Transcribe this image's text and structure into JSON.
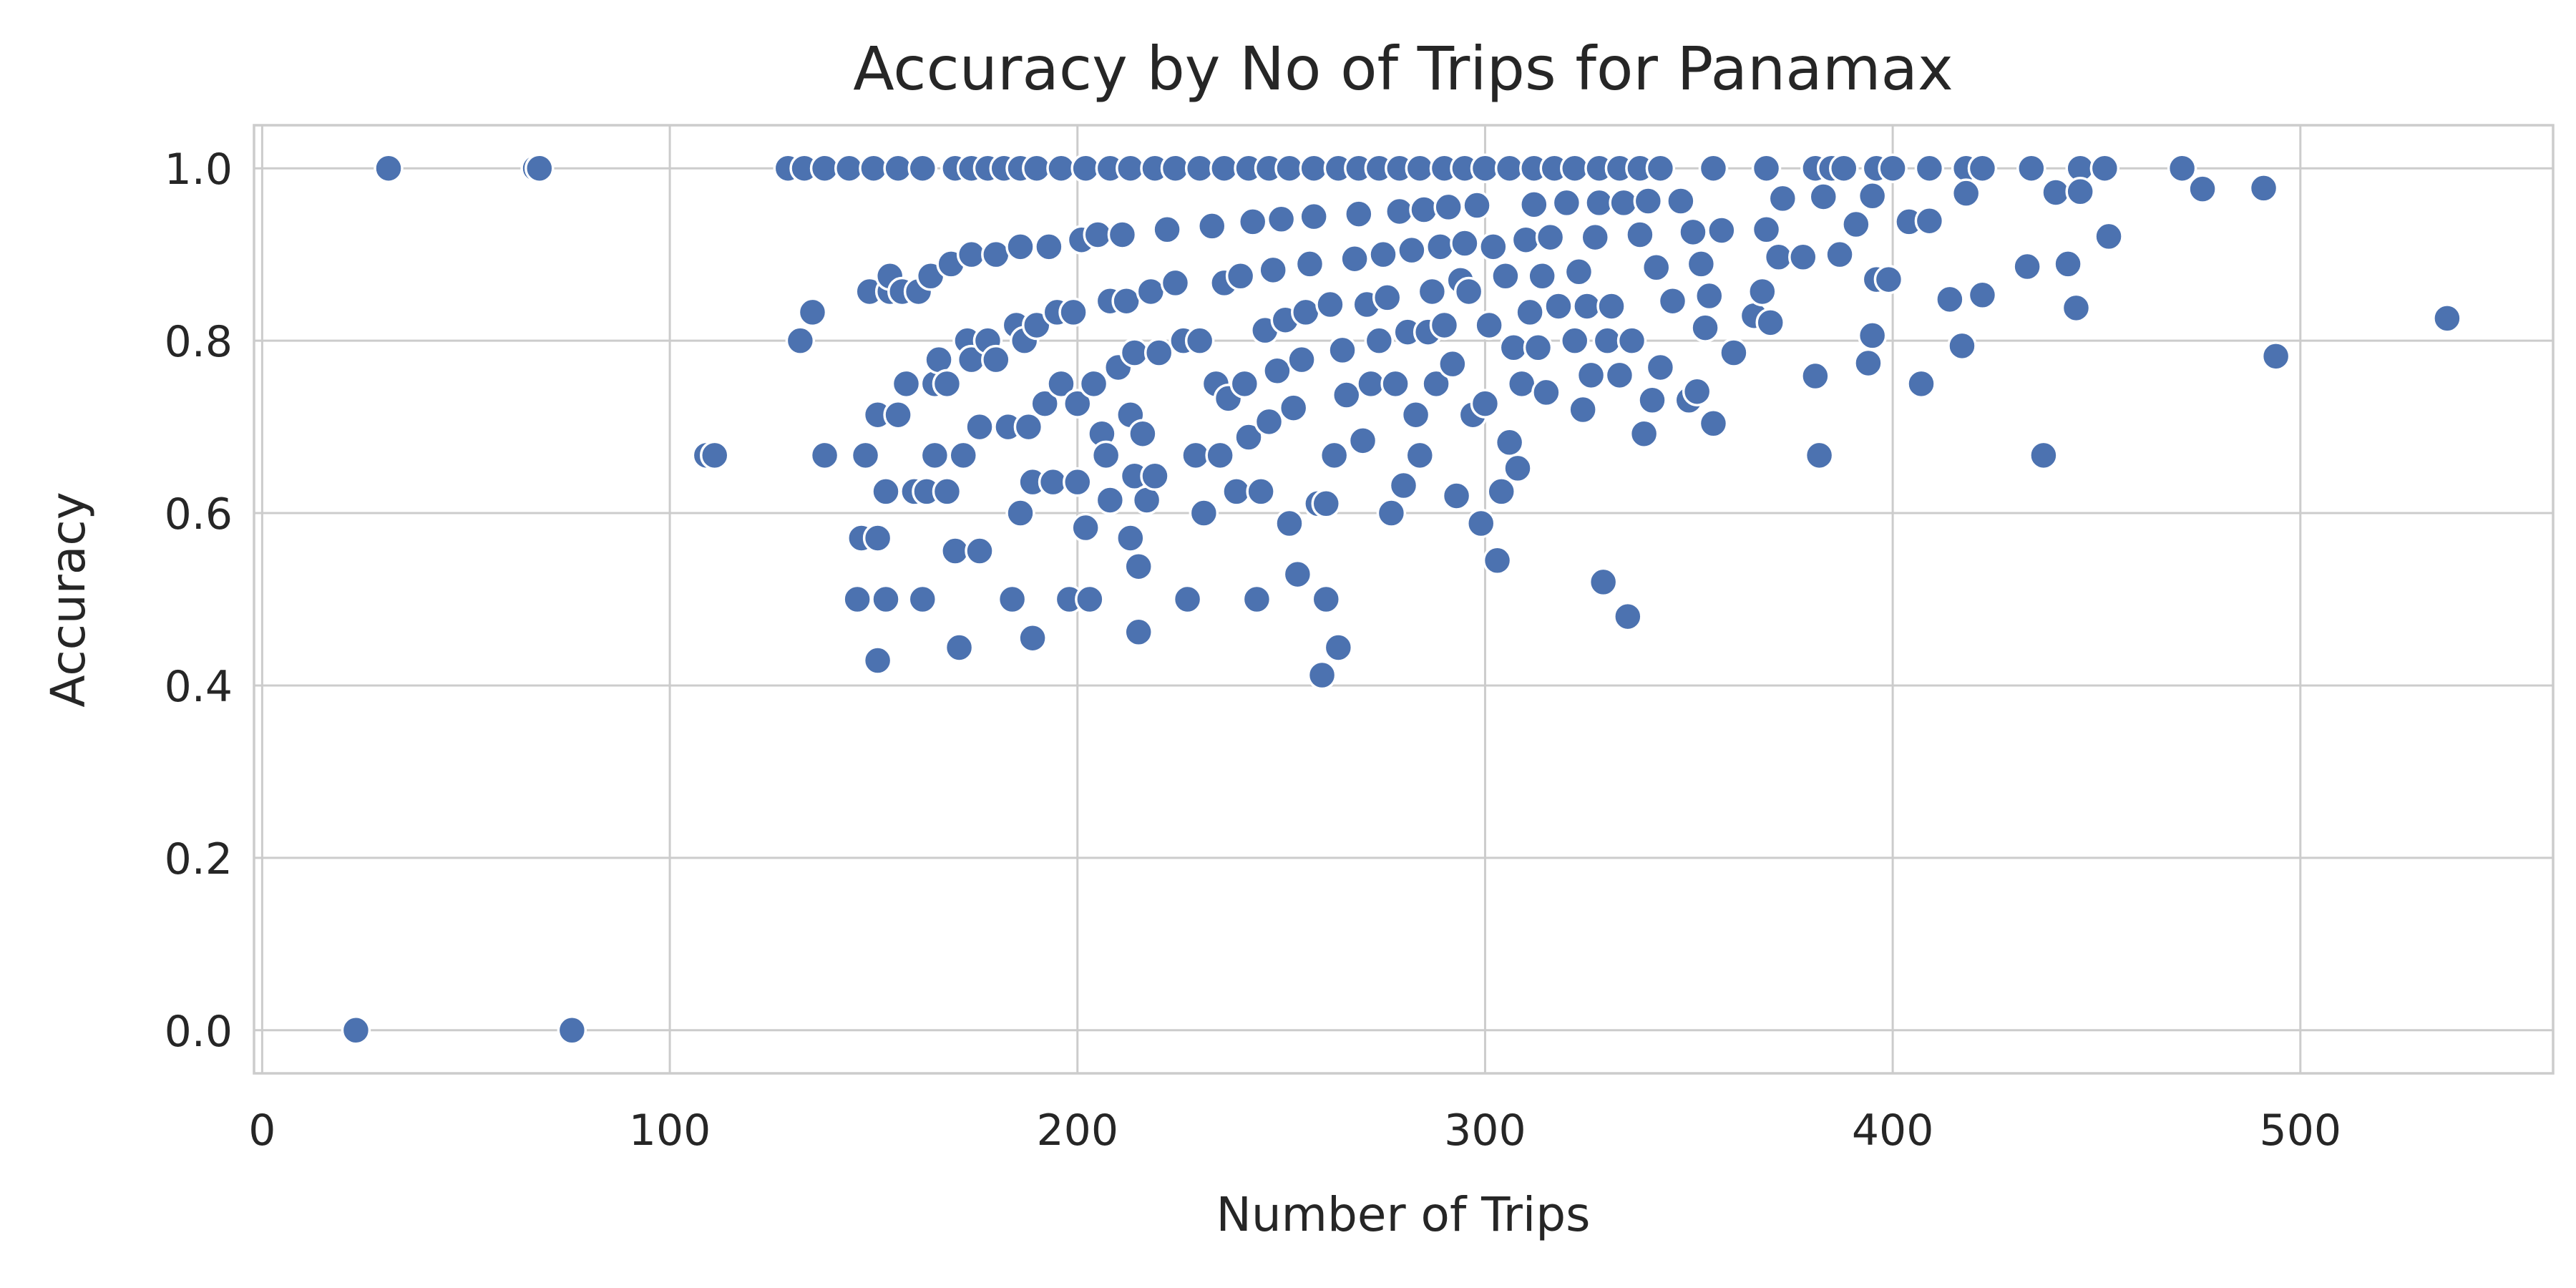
{
  "chart_data": {
    "type": "scatter",
    "title": "Accuracy by No of Trips for Panamax",
    "xlabel": "Number of Trips",
    "ylabel": "Accuracy",
    "xlim": [
      -2,
      562
    ],
    "ylim": [
      -0.05,
      1.05
    ],
    "xticks": [
      0,
      100,
      200,
      300,
      400,
      500
    ],
    "yticks": [
      0.0,
      0.2,
      0.4,
      0.6,
      0.8,
      1.0
    ],
    "xtick_labels": [
      "0",
      "100",
      "200",
      "300",
      "400",
      "500"
    ],
    "ytick_labels": [
      "0.0",
      "0.2",
      "0.4",
      "0.6",
      "0.8",
      "1.0"
    ],
    "grid": true,
    "legend": "none",
    "colors": {
      "point": "#4c72b0",
      "point_edge": "#ffffff",
      "grid": "#cccccc",
      "text": "#262626"
    },
    "points": [
      [
        23,
        0.0
      ],
      [
        76,
        0.0
      ],
      [
        31,
        1.0
      ],
      [
        67,
        1.0
      ],
      [
        68,
        1.0
      ],
      [
        109,
        0.667
      ],
      [
        111,
        0.667
      ],
      [
        129,
        1.0
      ],
      [
        133,
        1.0
      ],
      [
        138,
        1.0
      ],
      [
        144,
        1.0
      ],
      [
        150,
        1.0
      ],
      [
        156,
        1.0
      ],
      [
        162,
        1.0
      ],
      [
        170,
        1.0
      ],
      [
        174,
        1.0
      ],
      [
        178,
        1.0
      ],
      [
        182,
        1.0
      ],
      [
        186,
        1.0
      ],
      [
        190,
        1.0
      ],
      [
        196,
        1.0
      ],
      [
        202,
        1.0
      ],
      [
        208,
        1.0
      ],
      [
        213,
        1.0
      ],
      [
        219,
        1.0
      ],
      [
        224,
        1.0
      ],
      [
        230,
        1.0
      ],
      [
        236,
        1.0
      ],
      [
        242,
        1.0
      ],
      [
        247,
        1.0
      ],
      [
        252,
        1.0
      ],
      [
        258,
        1.0
      ],
      [
        264,
        1.0
      ],
      [
        269,
        1.0
      ],
      [
        274,
        1.0
      ],
      [
        279,
        1.0
      ],
      [
        284,
        1.0
      ],
      [
        290,
        1.0
      ],
      [
        295,
        1.0
      ],
      [
        300,
        1.0
      ],
      [
        306,
        1.0
      ],
      [
        312,
        1.0
      ],
      [
        317,
        1.0
      ],
      [
        322,
        1.0
      ],
      [
        328,
        1.0
      ],
      [
        333,
        1.0
      ],
      [
        338,
        1.0
      ],
      [
        343,
        1.0
      ],
      [
        356,
        1.0
      ],
      [
        369,
        1.0
      ],
      [
        381,
        1.0
      ],
      [
        385,
        1.0
      ],
      [
        388,
        1.0
      ],
      [
        396,
        1.0
      ],
      [
        400,
        1.0
      ],
      [
        409,
        1.0
      ],
      [
        418,
        1.0
      ],
      [
        422,
        1.0
      ],
      [
        434,
        1.0
      ],
      [
        446,
        1.0
      ],
      [
        452,
        1.0
      ],
      [
        471,
        1.0
      ],
      [
        135,
        0.833
      ],
      [
        138,
        0.667
      ],
      [
        132,
        0.8
      ],
      [
        146,
        0.5
      ],
      [
        147,
        0.571
      ],
      [
        148,
        0.667
      ],
      [
        149,
        0.857
      ],
      [
        151,
        0.429
      ],
      [
        151,
        0.571
      ],
      [
        151,
        0.714
      ],
      [
        153,
        0.5
      ],
      [
        153,
        0.625
      ],
      [
        154,
        0.857
      ],
      [
        154,
        0.875
      ],
      [
        156,
        0.714
      ],
      [
        157,
        0.857
      ],
      [
        158,
        0.75
      ],
      [
        160,
        0.625
      ],
      [
        161,
        0.857
      ],
      [
        162,
        0.5
      ],
      [
        163,
        0.625
      ],
      [
        164,
        0.875
      ],
      [
        165,
        0.75
      ],
      [
        165,
        0.667
      ],
      [
        166,
        0.778
      ],
      [
        168,
        0.625
      ],
      [
        168,
        0.75
      ],
      [
        169,
        0.889
      ],
      [
        170,
        0.556
      ],
      [
        171,
        0.444
      ],
      [
        172,
        0.667
      ],
      [
        173,
        0.8
      ],
      [
        174,
        0.778
      ],
      [
        174,
        0.9
      ],
      [
        176,
        0.556
      ],
      [
        176,
        0.7
      ],
      [
        178,
        0.8
      ],
      [
        180,
        0.778
      ],
      [
        180,
        0.9
      ],
      [
        183,
        0.7
      ],
      [
        184,
        0.5
      ],
      [
        185,
        0.818
      ],
      [
        186,
        0.6
      ],
      [
        186,
        0.909
      ],
      [
        187,
        0.8
      ],
      [
        188,
        0.7
      ],
      [
        189,
        0.455
      ],
      [
        189,
        0.636
      ],
      [
        190,
        0.818
      ],
      [
        192,
        0.727
      ],
      [
        193,
        0.909
      ],
      [
        194,
        0.636
      ],
      [
        195,
        0.833
      ],
      [
        196,
        0.75
      ],
      [
        198,
        0.5
      ],
      [
        199,
        0.833
      ],
      [
        200,
        0.636
      ],
      [
        200,
        0.727
      ],
      [
        201,
        0.917
      ],
      [
        202,
        0.583
      ],
      [
        203,
        0.5
      ],
      [
        204,
        0.75
      ],
      [
        205,
        0.923
      ],
      [
        206,
        0.692
      ],
      [
        207,
        0.667
      ],
      [
        208,
        0.615
      ],
      [
        208,
        0.846
      ],
      [
        210,
        0.769
      ],
      [
        211,
        0.923
      ],
      [
        212,
        0.846
      ],
      [
        213,
        0.571
      ],
      [
        213,
        0.714
      ],
      [
        214,
        0.643
      ],
      [
        214,
        0.786
      ],
      [
        215,
        0.462
      ],
      [
        215,
        0.538
      ],
      [
        216,
        0.692
      ],
      [
        217,
        0.615
      ],
      [
        218,
        0.857
      ],
      [
        219,
        0.643
      ],
      [
        220,
        0.786
      ],
      [
        222,
        0.929
      ],
      [
        224,
        0.867
      ],
      [
        226,
        0.8
      ],
      [
        227,
        0.5
      ],
      [
        229,
        0.667
      ],
      [
        230,
        0.8
      ],
      [
        231,
        0.6
      ],
      [
        233,
        0.933
      ],
      [
        234,
        0.75
      ],
      [
        235,
        0.667
      ],
      [
        236,
        0.867
      ],
      [
        237,
        0.733
      ],
      [
        239,
        0.625
      ],
      [
        240,
        0.875
      ],
      [
        241,
        0.75
      ],
      [
        242,
        0.688
      ],
      [
        243,
        0.938
      ],
      [
        244,
        0.5
      ],
      [
        245,
        0.625
      ],
      [
        246,
        0.812
      ],
      [
        247,
        0.706
      ],
      [
        248,
        0.882
      ],
      [
        249,
        0.765
      ],
      [
        250,
        0.941
      ],
      [
        251,
        0.824
      ],
      [
        252,
        0.588
      ],
      [
        253,
        0.722
      ],
      [
        254,
        0.529
      ],
      [
        255,
        0.778
      ],
      [
        256,
        0.833
      ],
      [
        257,
        0.889
      ],
      [
        258,
        0.944
      ],
      [
        259,
        0.611
      ],
      [
        260,
        0.412
      ],
      [
        261,
        0.5
      ],
      [
        261,
        0.611
      ],
      [
        262,
        0.842
      ],
      [
        263,
        0.667
      ],
      [
        264,
        0.444
      ],
      [
        265,
        0.789
      ],
      [
        266,
        0.737
      ],
      [
        268,
        0.895
      ],
      [
        269,
        0.947
      ],
      [
        270,
        0.684
      ],
      [
        271,
        0.842
      ],
      [
        272,
        0.75
      ],
      [
        274,
        0.8
      ],
      [
        275,
        0.9
      ],
      [
        276,
        0.85
      ],
      [
        277,
        0.6
      ],
      [
        278,
        0.75
      ],
      [
        279,
        0.95
      ],
      [
        280,
        0.632
      ],
      [
        281,
        0.81
      ],
      [
        282,
        0.905
      ],
      [
        283,
        0.714
      ],
      [
        284,
        0.667
      ],
      [
        285,
        0.952
      ],
      [
        286,
        0.81
      ],
      [
        287,
        0.857
      ],
      [
        288,
        0.75
      ],
      [
        289,
        0.909
      ],
      [
        290,
        0.818
      ],
      [
        291,
        0.955
      ],
      [
        292,
        0.773
      ],
      [
        293,
        0.62
      ],
      [
        294,
        0.87
      ],
      [
        295,
        0.913
      ],
      [
        296,
        0.857
      ],
      [
        297,
        0.714
      ],
      [
        298,
        0.957
      ],
      [
        299,
        0.588
      ],
      [
        300,
        0.727
      ],
      [
        301,
        0.818
      ],
      [
        302,
        0.909
      ],
      [
        303,
        0.545
      ],
      [
        304,
        0.625
      ],
      [
        305,
        0.875
      ],
      [
        306,
        0.682
      ],
      [
        307,
        0.792
      ],
      [
        308,
        0.652
      ],
      [
        309,
        0.75
      ],
      [
        310,
        0.917
      ],
      [
        311,
        0.833
      ],
      [
        312,
        0.958
      ],
      [
        313,
        0.792
      ],
      [
        314,
        0.875
      ],
      [
        315,
        0.74
      ],
      [
        316,
        0.92
      ],
      [
        318,
        0.84
      ],
      [
        320,
        0.96
      ],
      [
        322,
        0.8
      ],
      [
        323,
        0.88
      ],
      [
        324,
        0.72
      ],
      [
        325,
        0.84
      ],
      [
        326,
        0.76
      ],
      [
        327,
        0.92
      ],
      [
        328,
        0.96
      ],
      [
        329,
        0.52
      ],
      [
        330,
        0.8
      ],
      [
        331,
        0.84
      ],
      [
        333,
        0.76
      ],
      [
        334,
        0.96
      ],
      [
        335,
        0.48
      ],
      [
        336,
        0.8
      ],
      [
        338,
        0.923
      ],
      [
        339,
        0.692
      ],
      [
        340,
        0.962
      ],
      [
        341,
        0.731
      ],
      [
        342,
        0.885
      ],
      [
        343,
        0.769
      ],
      [
        346,
        0.846
      ],
      [
        348,
        0.962
      ],
      [
        350,
        0.731
      ],
      [
        351,
        0.926
      ],
      [
        352,
        0.741
      ],
      [
        353,
        0.889
      ],
      [
        354,
        0.815
      ],
      [
        355,
        0.852
      ],
      [
        356,
        0.704
      ],
      [
        358,
        0.928
      ],
      [
        361,
        0.786
      ],
      [
        366,
        0.829
      ],
      [
        368,
        0.857
      ],
      [
        369,
        0.929
      ],
      [
        370,
        0.821
      ],
      [
        372,
        0.897
      ],
      [
        373,
        0.965
      ],
      [
        378,
        0.897
      ],
      [
        381,
        0.759
      ],
      [
        382,
        0.667
      ],
      [
        383,
        0.967
      ],
      [
        387,
        0.9
      ],
      [
        391,
        0.935
      ],
      [
        394,
        0.774
      ],
      [
        395,
        0.806
      ],
      [
        395,
        0.968
      ],
      [
        396,
        0.871
      ],
      [
        399,
        0.871
      ],
      [
        404,
        0.938
      ],
      [
        407,
        0.75
      ],
      [
        409,
        0.939
      ],
      [
        414,
        0.848
      ],
      [
        417,
        0.794
      ],
      [
        418,
        0.971
      ],
      [
        422,
        0.853
      ],
      [
        433,
        0.886
      ],
      [
        437,
        0.667
      ],
      [
        440,
        0.972
      ],
      [
        443,
        0.889
      ],
      [
        445,
        0.838
      ],
      [
        446,
        0.973
      ],
      [
        453,
        0.921
      ],
      [
        476,
        0.976
      ],
      [
        491,
        0.977
      ],
      [
        494,
        0.782
      ],
      [
        536,
        0.826
      ]
    ]
  }
}
